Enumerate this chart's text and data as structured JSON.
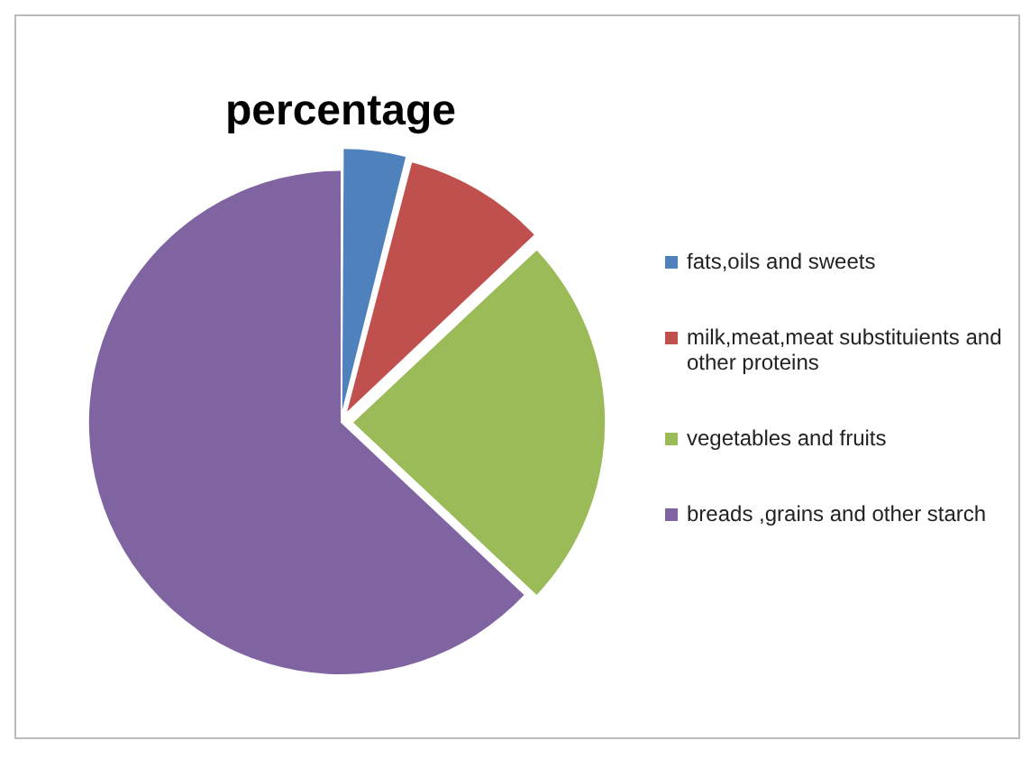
{
  "chart_data": {
    "type": "pie",
    "title": "percentage",
    "categories": [
      "fats,oils and sweets",
      "milk,meat,meat substituients and other proteins",
      "vegetables and fruits",
      "breads ,grains and other starch"
    ],
    "values": [
      4,
      9,
      24,
      63
    ],
    "colors": [
      "#4f81bd",
      "#c0504d",
      "#9bbb59",
      "#8064a2"
    ],
    "legend": "right"
  }
}
